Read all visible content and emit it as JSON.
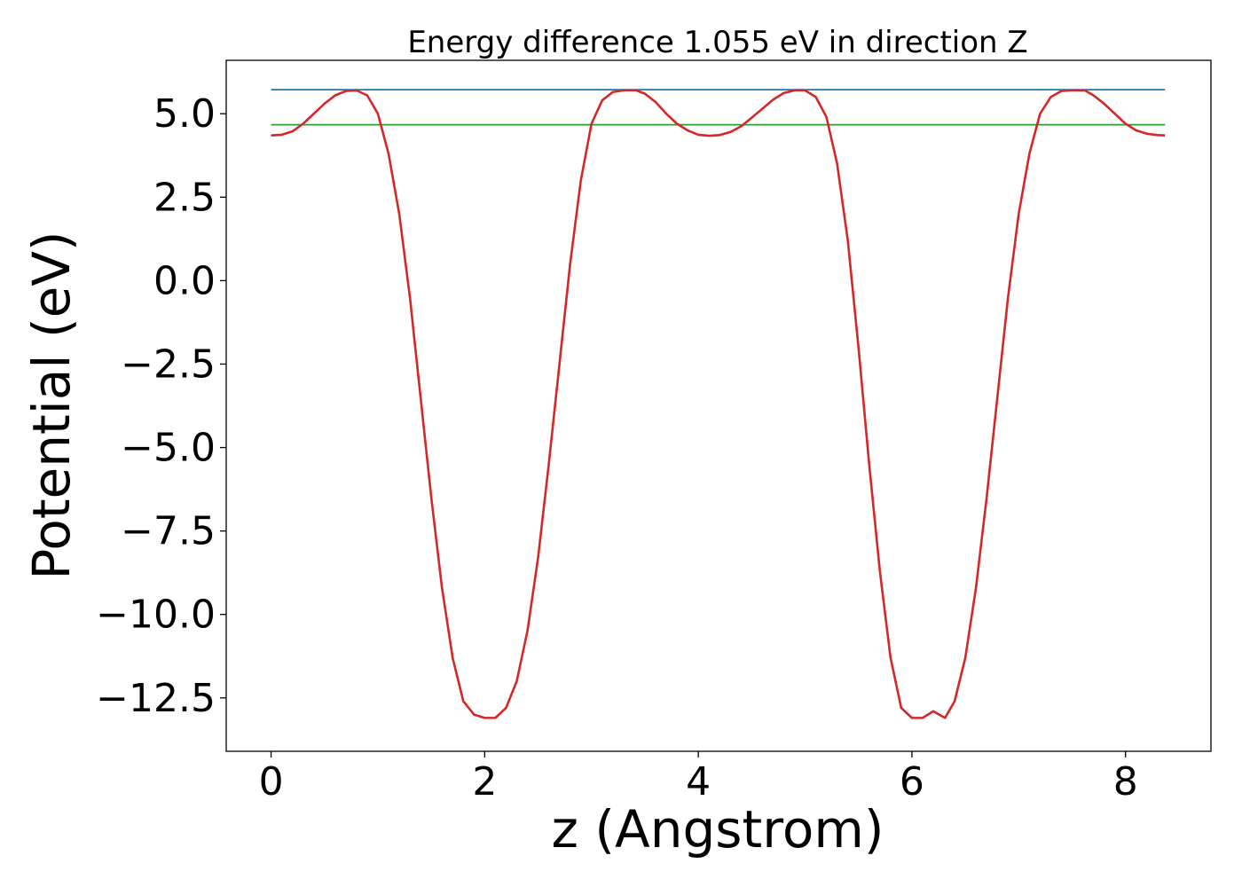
{
  "chart_data": {
    "type": "line",
    "title": "Energy difference 1.055 eV in direction Z",
    "xlabel": "z (Angstrom)",
    "ylabel": "Potential (eV)",
    "xlim": [
      -0.42,
      8.8
    ],
    "ylim": [
      -14.1,
      6.6
    ],
    "x_ticks": [
      0,
      2,
      4,
      6,
      8
    ],
    "x_tick_labels": [
      "0",
      "2",
      "4",
      "6",
      "8"
    ],
    "y_ticks": [
      5.0,
      2.5,
      0.0,
      -2.5,
      -5.0,
      -7.5,
      -10.0,
      -12.5
    ],
    "y_tick_labels": [
      "5.0",
      "2.5",
      "0.0",
      "−2.5",
      "−5.0",
      "−7.5",
      "−10.0",
      "−12.5"
    ],
    "grid": false,
    "series": [
      {
        "color": "#d62728",
        "x": [
          0.0,
          0.1,
          0.2,
          0.3,
          0.4,
          0.5,
          0.6,
          0.7,
          0.8,
          0.9,
          1.0,
          1.1,
          1.2,
          1.3,
          1.4,
          1.5,
          1.6,
          1.7,
          1.8,
          1.9,
          2.0,
          2.1,
          2.2,
          2.3,
          2.4,
          2.5,
          2.6,
          2.7,
          2.8,
          2.9,
          3.0,
          3.1,
          3.2,
          3.3,
          3.42,
          3.5,
          3.6,
          3.7,
          3.8,
          3.9,
          4.0,
          4.1,
          4.2,
          4.3,
          4.4,
          4.5,
          4.6,
          4.7,
          4.8,
          4.9,
          5.0,
          5.1,
          5.2,
          5.3,
          5.4,
          5.5,
          5.6,
          5.7,
          5.8,
          5.9,
          6.0,
          6.1,
          6.2,
          6.31,
          6.4,
          6.5,
          6.6,
          6.7,
          6.8,
          6.9,
          7.0,
          7.1,
          7.2,
          7.3,
          7.4,
          7.5,
          7.62,
          7.7,
          7.8,
          7.9,
          8.0,
          8.1,
          8.2,
          8.3,
          8.37
        ],
        "y": [
          4.35,
          4.37,
          4.47,
          4.7,
          5.0,
          5.3,
          5.55,
          5.68,
          5.7,
          5.55,
          5.0,
          3.8,
          2.0,
          -0.5,
          -3.5,
          -6.5,
          -9.2,
          -11.3,
          -12.6,
          -13.0,
          -13.1,
          -13.1,
          -12.8,
          -12.0,
          -10.5,
          -8.3,
          -5.5,
          -2.5,
          0.5,
          3.0,
          4.7,
          5.4,
          5.65,
          5.7,
          5.7,
          5.6,
          5.35,
          5.0,
          4.7,
          4.5,
          4.37,
          4.34,
          4.36,
          4.45,
          4.62,
          4.88,
          5.15,
          5.42,
          5.62,
          5.7,
          5.7,
          5.5,
          4.9,
          3.5,
          1.2,
          -2.0,
          -5.5,
          -8.7,
          -11.3,
          -12.8,
          -13.1,
          -13.1,
          -12.9,
          -13.1,
          -12.6,
          -11.3,
          -9.2,
          -6.5,
          -3.5,
          -0.5,
          2.0,
          3.8,
          5.0,
          5.5,
          5.68,
          5.7,
          5.7,
          5.55,
          5.3,
          5.0,
          4.7,
          4.5,
          4.4,
          4.36,
          4.35
        ]
      },
      {
        "color": "#1f77b4",
        "x": [
          0.0,
          8.37
        ],
        "y": [
          5.72,
          5.72
        ]
      },
      {
        "color": "#2ca02c",
        "x": [
          0.0,
          8.37
        ],
        "y": [
          4.67,
          4.67
        ]
      }
    ]
  }
}
